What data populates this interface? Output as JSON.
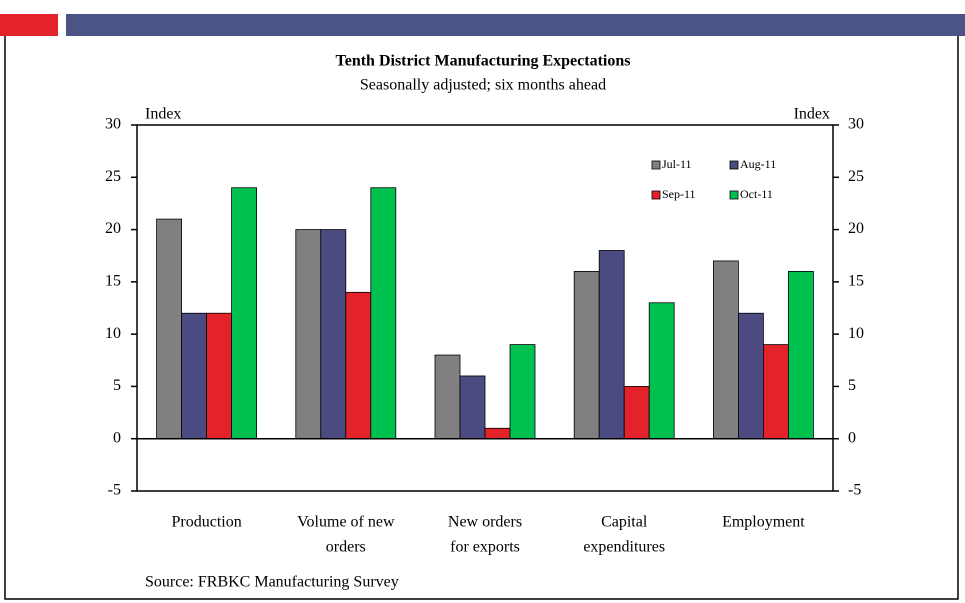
{
  "chart_data": {
    "type": "bar",
    "title": "Tenth District Manufacturing Expectations",
    "subtitle": "Seasonally adjusted; six months ahead",
    "ylabel": "Index",
    "y2label": "Index",
    "source": "Source: FRBKC Manufacturing Survey",
    "categories": [
      [
        "Production"
      ],
      [
        "Volume of new",
        "orders"
      ],
      [
        "New orders",
        "for exports"
      ],
      [
        "Capital",
        "expenditures"
      ],
      [
        "Employment"
      ]
    ],
    "series": [
      {
        "name": "Jul-11",
        "color": "#808080",
        "values": [
          21,
          20,
          8,
          16,
          17
        ]
      },
      {
        "name": "Aug-11",
        "color": "#4b4b82",
        "values": [
          12,
          20,
          6,
          18,
          12
        ]
      },
      {
        "name": "Sep-11",
        "color": "#e3222a",
        "values": [
          12,
          14,
          1,
          5,
          9
        ]
      },
      {
        "name": "Oct-11",
        "color": "#00c050",
        "values": [
          24,
          24,
          9,
          13,
          16
        ]
      }
    ],
    "ylim": [
      -5,
      30
    ],
    "yticks": [
      -5,
      0,
      5,
      10,
      15,
      20,
      25,
      30
    ],
    "y2lim": [
      -5,
      30
    ],
    "y2ticks": [
      -5,
      0,
      5,
      10,
      15,
      20,
      25,
      30
    ],
    "grid": false,
    "legend": "upper right"
  }
}
